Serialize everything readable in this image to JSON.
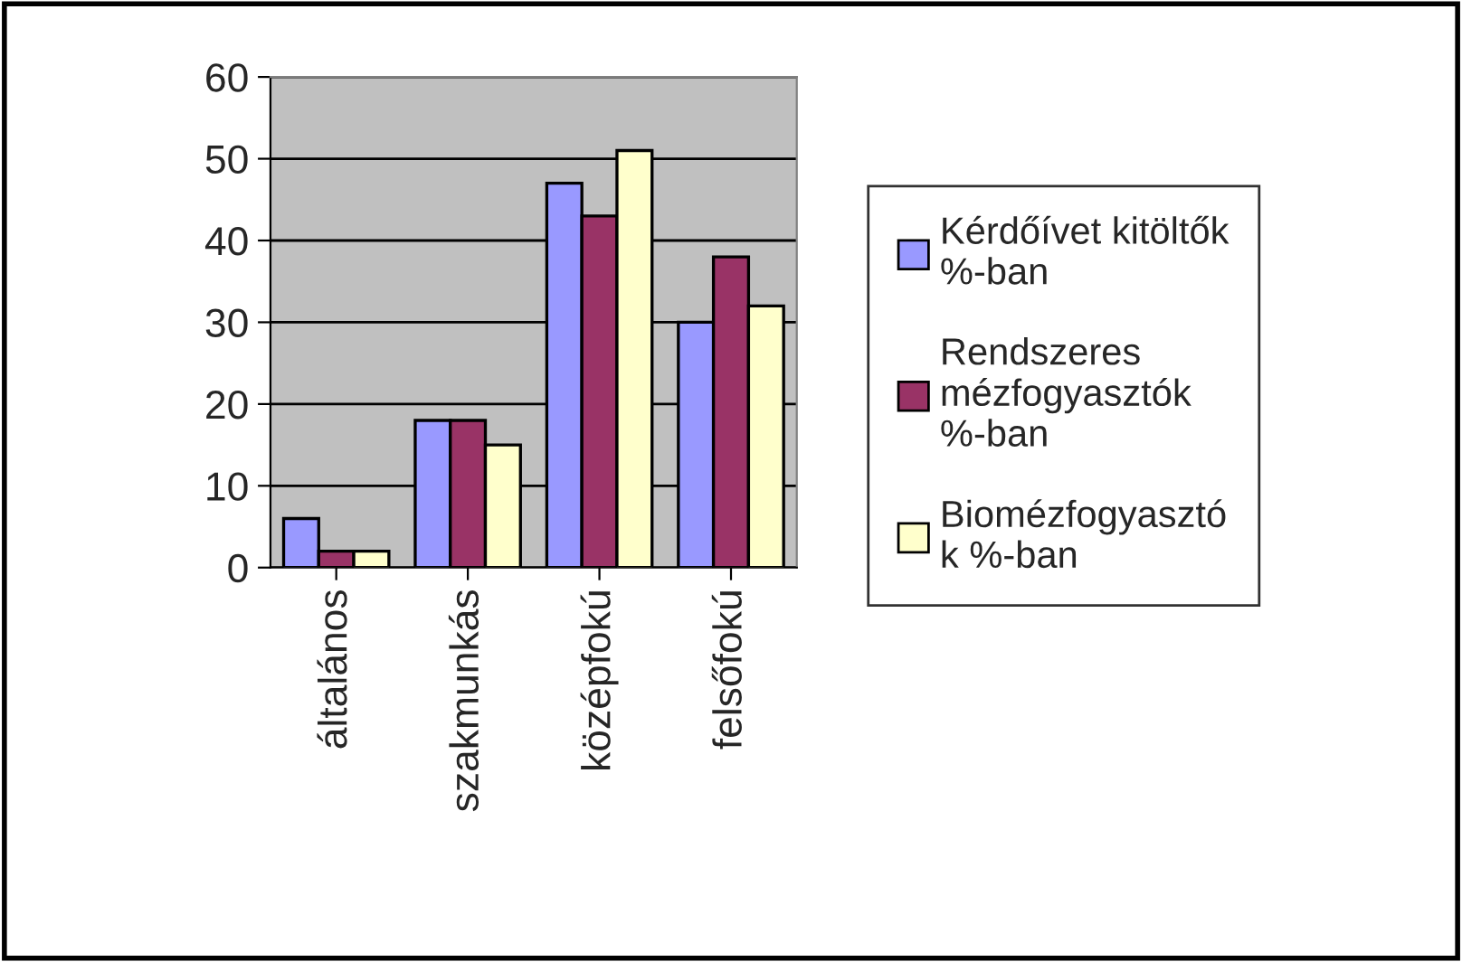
{
  "chart_data": {
    "type": "bar",
    "categories": [
      "általános",
      "szakmunkás",
      "középfokú",
      "felsőfokú"
    ],
    "series": [
      {
        "name": "Kérdőívet kitöltők\n%-ban",
        "color": "#9999ff",
        "values": [
          6,
          18,
          47,
          30
        ]
      },
      {
        "name": "Rendszeres\nmézfogyasztók\n%-ban",
        "color": "#993366",
        "values": [
          2,
          18,
          43,
          38
        ]
      },
      {
        "name": "Biomézfogyasztó\nk %-ban",
        "color": "#ffffcc",
        "values": [
          2,
          15,
          51,
          32
        ]
      }
    ],
    "ylim": [
      0,
      60
    ],
    "yticks": [
      0,
      10,
      20,
      30,
      40,
      50,
      60
    ],
    "grid": "y",
    "legend": "right"
  }
}
